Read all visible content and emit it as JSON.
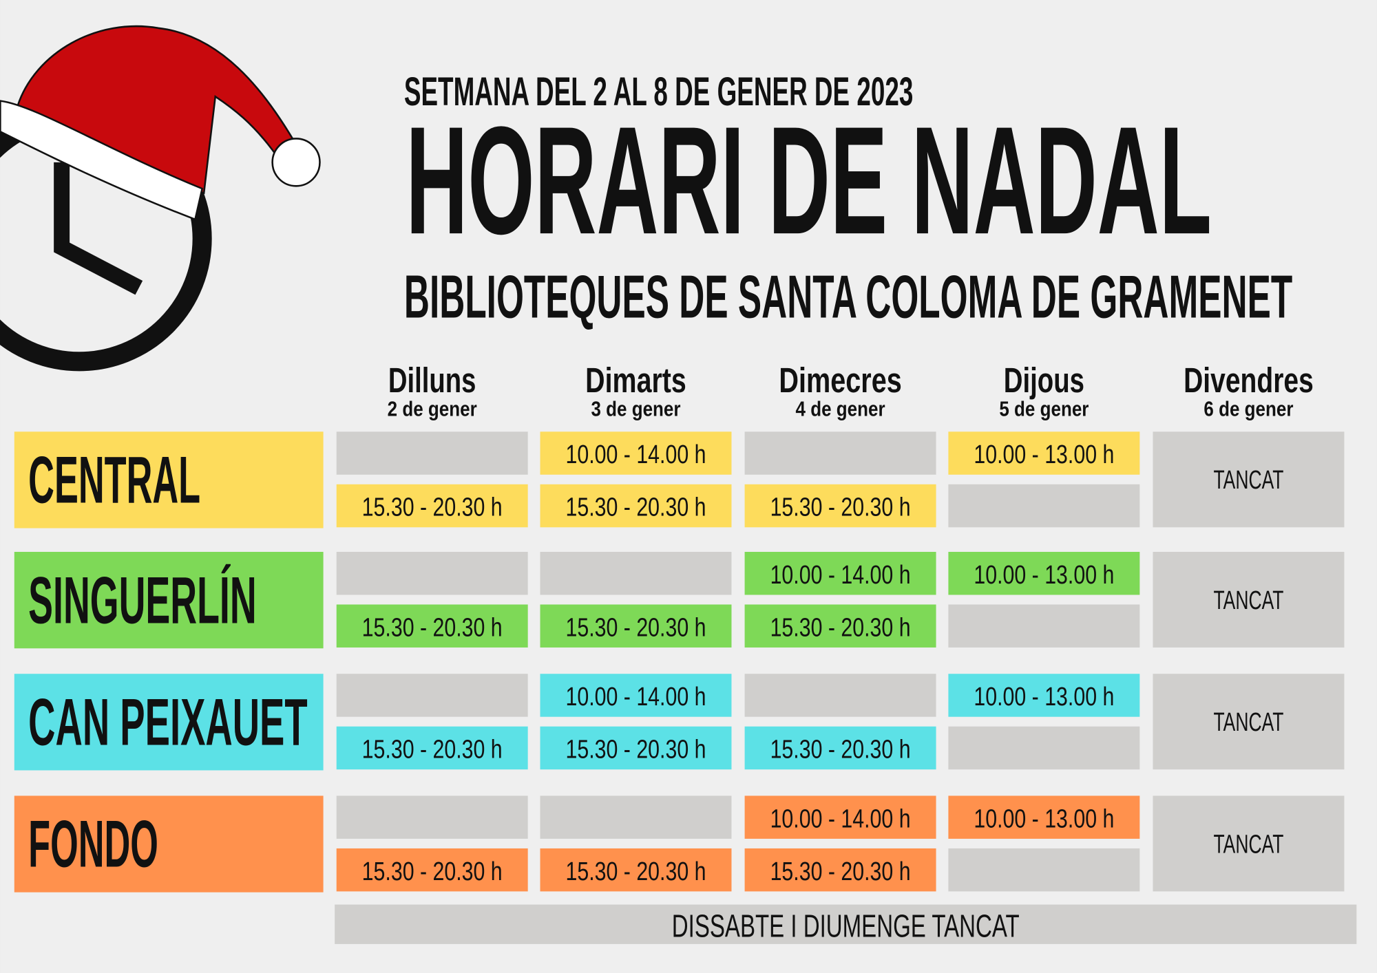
{
  "header": {
    "subtitle": "SETMANA DEL 2 AL 8 DE GENER DE 2023",
    "title": "HORARI DE NADAL",
    "organization": "BIBLIOTEQUES DE SANTA COLOMA DE GRAMENET"
  },
  "days": [
    {
      "name": "Dilluns",
      "date": "2 de gener"
    },
    {
      "name": "Dimarts",
      "date": "3 de gener"
    },
    {
      "name": "Dimecres",
      "date": "4 de gener"
    },
    {
      "name": "Dijous",
      "date": "5 de gener"
    },
    {
      "name": "Divendres",
      "date": "6 de gener"
    }
  ],
  "libraries": [
    {
      "name": "CENTRAL",
      "morning": [
        null,
        "10.00 - 14.00 h",
        null,
        "10.00 - 13.00 h"
      ],
      "afternoon": [
        "15.30 - 20.30 h",
        "15.30 - 20.30 h",
        "15.30 - 20.30 h",
        null
      ],
      "friday": "TANCAT"
    },
    {
      "name": "SINGUERLÍN",
      "morning": [
        null,
        null,
        "10.00 - 14.00 h",
        "10.00 - 13.00 h"
      ],
      "afternoon": [
        "15.30 - 20.30 h",
        "15.30 - 20.30 h",
        "15.30 - 20.30 h",
        null
      ],
      "friday": "TANCAT"
    },
    {
      "name": "CAN PEIXAUET",
      "morning": [
        null,
        "10.00 - 14.00 h",
        null,
        "10.00 - 13.00 h"
      ],
      "afternoon": [
        "15.30 - 20.30 h",
        "15.30 - 20.30 h",
        "15.30 - 20.30 h",
        null
      ],
      "friday": "TANCAT"
    },
    {
      "name": "FONDO",
      "morning": [
        null,
        null,
        "10.00 - 14.00 h",
        "10.00 - 13.00 h"
      ],
      "afternoon": [
        "15.30 - 20.30 h",
        "15.30 - 20.30 h",
        "15.30 - 20.30 h",
        null
      ],
      "friday": "TANCAT"
    }
  ],
  "footer": "DISSABTE I DIUMENGE TANCAT"
}
